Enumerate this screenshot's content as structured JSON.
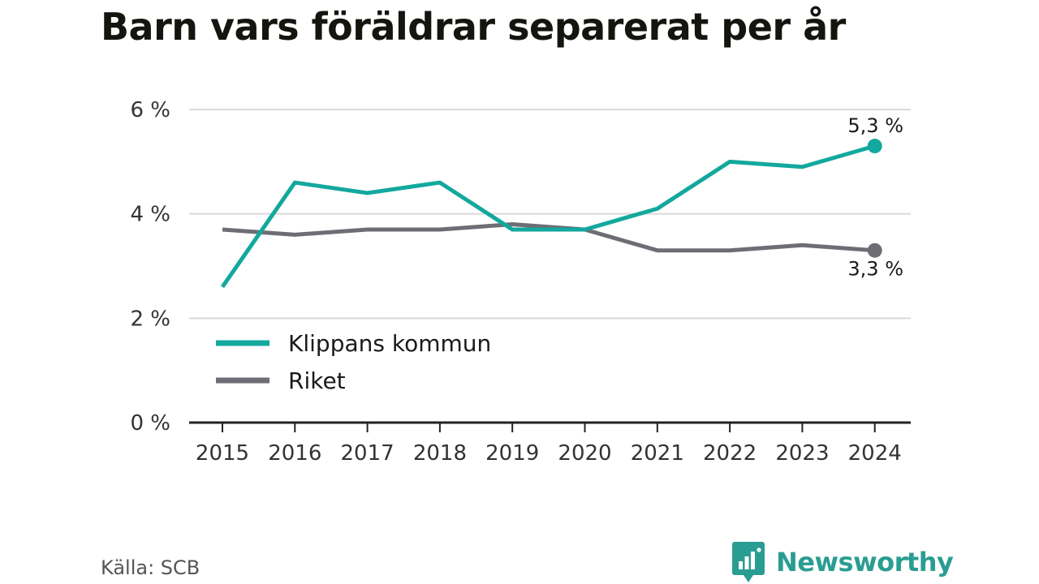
{
  "title": "Barn vars föräldrar separerat per år",
  "source": "Källa: SCB",
  "brand": {
    "name": "Newsworthy",
    "icon": "bar-chart-bubble-icon",
    "color": "#2a9d92"
  },
  "chart_data": {
    "type": "line",
    "title": "Barn vars föräldrar separerat per år",
    "xlabel": "",
    "ylabel": "",
    "x": [
      "2015",
      "2016",
      "2017",
      "2018",
      "2019",
      "2020",
      "2021",
      "2022",
      "2023",
      "2024"
    ],
    "y_ticks": [
      {
        "value": 0,
        "label": "0 %"
      },
      {
        "value": 2,
        "label": "2 %"
      },
      {
        "value": 4,
        "label": "4 %"
      },
      {
        "value": 6,
        "label": "6 %"
      }
    ],
    "ylim": [
      0,
      6
    ],
    "grid": true,
    "legend_position": "bottom-left",
    "series": [
      {
        "name": "Klippans kommun",
        "color": "#13a89e",
        "values": [
          2.6,
          4.6,
          4.4,
          4.6,
          3.7,
          3.7,
          4.1,
          5.0,
          4.9,
          5.3
        ],
        "end_label": "5,3 %"
      },
      {
        "name": "Riket",
        "color": "#6e6d75",
        "values": [
          3.7,
          3.6,
          3.7,
          3.7,
          3.8,
          3.7,
          3.3,
          3.3,
          3.4,
          3.3
        ],
        "end_label": "3,3 %"
      }
    ]
  }
}
